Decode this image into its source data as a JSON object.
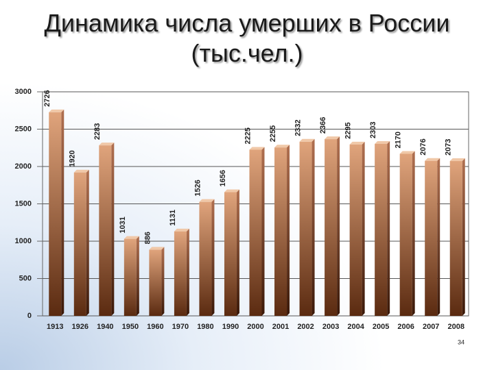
{
  "chart_data": {
    "type": "bar",
    "title": "Динамика числа умерших в России (тыс.чел.)",
    "categories": [
      "1913",
      "1926",
      "1940",
      "1950",
      "1960",
      "1970",
      "1980",
      "1990",
      "2000",
      "2001",
      "2002",
      "2003",
      "2004",
      "2005",
      "2006",
      "2007",
      "2008"
    ],
    "values": [
      2726,
      1920,
      2283,
      1031,
      886,
      1131,
      1526,
      1656,
      2225,
      2255,
      2332,
      2366,
      2295,
      2303,
      2170,
      2076,
      2073
    ],
    "color": "#e0a47c",
    "ylim": [
      0,
      3000
    ],
    "yticks": [
      0,
      500,
      1000,
      1500,
      2000,
      2500,
      3000
    ],
    "grid": true
  },
  "slide_number": "34"
}
